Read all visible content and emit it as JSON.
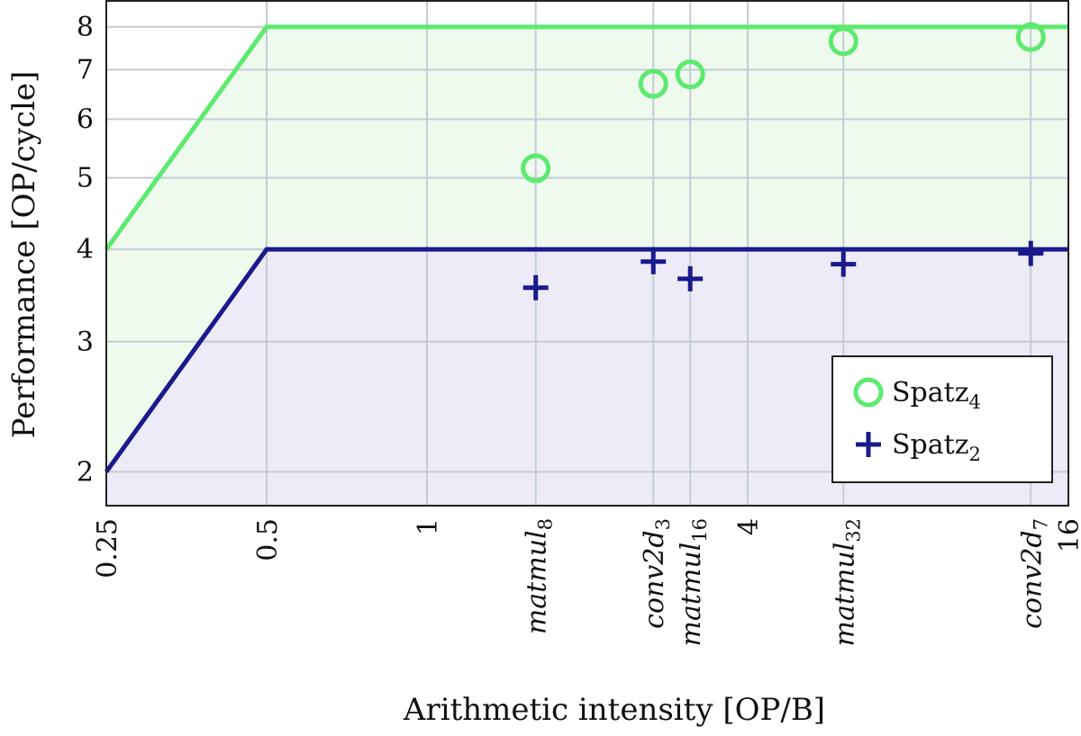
{
  "chart_data": {
    "type": "scatter",
    "title": "",
    "xlabel": "Arithmetic intensity [OP/B]",
    "ylabel": "Performance [OP/cycle]",
    "x_scale": "log2",
    "y_scale": "log2",
    "xlim": [
      0.25,
      16
    ],
    "ylim": [
      1.8,
      8.7
    ],
    "grid": true,
    "legend_position": "bottom-right",
    "x_ticks": [
      {
        "value": 0.25,
        "label": "0.25",
        "italic": false
      },
      {
        "value": 0.5,
        "label": "0.5",
        "italic": false
      },
      {
        "value": 1,
        "label": "1",
        "italic": false
      },
      {
        "value": 1.6,
        "label": "matmul",
        "sub": "8",
        "italic": true
      },
      {
        "value": 2.66,
        "label": "conv2d",
        "sub": "3",
        "italic": true
      },
      {
        "value": 3.12,
        "label": "matmul",
        "sub": "16",
        "italic": true
      },
      {
        "value": 4,
        "label": "4",
        "italic": false
      },
      {
        "value": 6.05,
        "label": "matmul",
        "sub": "32",
        "italic": true
      },
      {
        "value": 13.6,
        "label": "conv2d",
        "sub": "7",
        "italic": true
      },
      {
        "value": 16,
        "label": "16",
        "italic": false
      }
    ],
    "y_ticks": [
      {
        "value": 2,
        "label": "2"
      },
      {
        "value": 3,
        "label": "3"
      },
      {
        "value": 4,
        "label": "4"
      },
      {
        "value": 5,
        "label": "5"
      },
      {
        "value": 6,
        "label": "6"
      },
      {
        "value": 7,
        "label": "7"
      },
      {
        "value": 8,
        "label": "8"
      }
    ],
    "rooflines": [
      {
        "series": "Spatz_4",
        "color": "#5cea6e",
        "fill": "#eefaee",
        "points": [
          [
            0.25,
            4
          ],
          [
            0.5,
            8
          ],
          [
            16,
            8
          ]
        ]
      },
      {
        "series": "Spatz_2",
        "color": "#1a1a8c",
        "fill": "#ecebf7",
        "points": [
          [
            0.25,
            2
          ],
          [
            0.5,
            4
          ],
          [
            16,
            4
          ]
        ]
      }
    ],
    "series": [
      {
        "name": "Spatz",
        "sub": "4",
        "marker": "circle",
        "color": "#5cea6e",
        "points": [
          [
            1.6,
            5.15
          ],
          [
            2.66,
            6.7
          ],
          [
            3.12,
            6.9
          ],
          [
            6.05,
            7.65
          ],
          [
            13.6,
            7.75
          ]
        ]
      },
      {
        "name": "Spatz",
        "sub": "2",
        "marker": "plus",
        "color": "#1a1a8c",
        "points": [
          [
            1.6,
            3.55
          ],
          [
            2.66,
            3.85
          ],
          [
            3.12,
            3.65
          ],
          [
            6.05,
            3.82
          ],
          [
            13.6,
            3.95
          ]
        ]
      }
    ]
  }
}
